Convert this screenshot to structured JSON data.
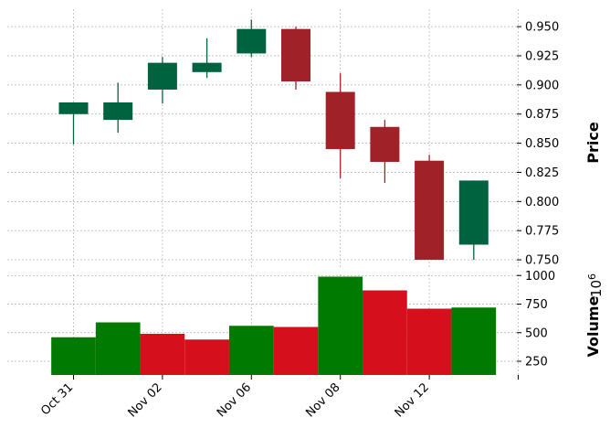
{
  "chart_data": {
    "type": "candlestick",
    "x_ticks": [
      "Oct 31",
      "Nov 02",
      "Nov 06",
      "Nov 08",
      "Nov 12"
    ],
    "candles": [
      {
        "open": 0.875,
        "high": 0.885,
        "low": 0.849,
        "close": 0.885
      },
      {
        "open": 0.87,
        "high": 0.902,
        "low": 0.859,
        "close": 0.885
      },
      {
        "open": 0.896,
        "high": 0.924,
        "low": 0.884,
        "close": 0.919
      },
      {
        "open": 0.911,
        "high": 0.94,
        "low": 0.906,
        "close": 0.919
      },
      {
        "open": 0.927,
        "high": 0.956,
        "low": 0.924,
        "close": 0.948
      },
      {
        "open": 0.948,
        "high": 0.95,
        "low": 0.896,
        "close": 0.903
      },
      {
        "open": 0.894,
        "high": 0.91,
        "low": 0.82,
        "close": 0.845
      },
      {
        "open": 0.864,
        "high": 0.87,
        "low": 0.816,
        "close": 0.834
      },
      {
        "open": 0.835,
        "high": 0.84,
        "low": 0.75,
        "close": 0.75
      },
      {
        "open": 0.763,
        "high": 0.818,
        "low": 0.75,
        "close": 0.818
      }
    ],
    "volume": [
      460000,
      590000,
      490000,
      440000,
      560000,
      550000,
      990000,
      870000,
      710000,
      720000
    ],
    "price_axis": {
      "label": "Price",
      "ticks": [
        "0.750",
        "0.775",
        "0.800",
        "0.825",
        "0.850",
        "0.875",
        "0.900",
        "0.925",
        "0.950"
      ],
      "range": [
        0.743,
        0.965
      ]
    },
    "volume_axis": {
      "label": "Volume",
      "multiplier": "10^6",
      "multiplier_base": "10",
      "multiplier_exp": "6",
      "ticks": [
        "250",
        "500",
        "750",
        "1000"
      ],
      "range": [
        130,
        1010
      ]
    },
    "grid": true,
    "colors": {
      "up_candle": "#006340",
      "down_candle": "#a02128",
      "up_volume": "#007a00",
      "down_volume": "#d5101c",
      "grid": "#b0b0b0"
    }
  }
}
